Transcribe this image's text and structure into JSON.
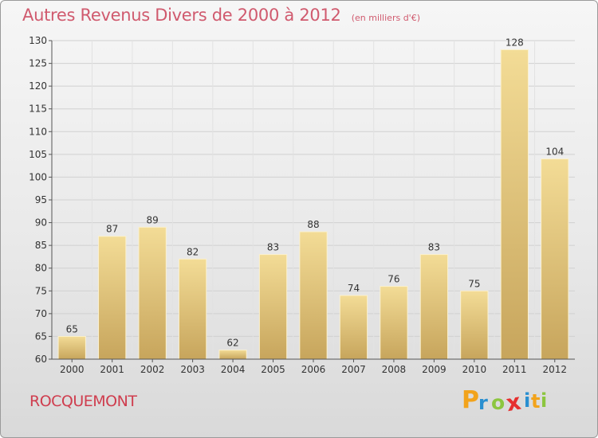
{
  "header": {
    "title": "Autres Revenus Divers de 2000 à 2012",
    "unit": "(en milliers d'€)"
  },
  "location": "ROCQUEMONT",
  "logo": {
    "text": "Proxiti",
    "letters": [
      {
        "ch": "P",
        "color": "#f2a31b"
      },
      {
        "ch": "r",
        "color": "#2a8fd0"
      },
      {
        "ch": "o",
        "color": "#8cc63f"
      },
      {
        "ch": "x",
        "color": "#e6302f"
      },
      {
        "ch": "i",
        "color": "#2a8fd0"
      },
      {
        "ch": "t",
        "color": "#f2a31b"
      },
      {
        "ch": "i",
        "color": "#8cc63f"
      }
    ]
  },
  "colors": {
    "title": "#d05a6e",
    "bar_light": "#f3dc96",
    "bar_dark": "#c7a55c",
    "grid": "#d0d0d0",
    "axis": "#555555"
  },
  "chart_data": {
    "type": "bar",
    "categories": [
      "2000",
      "2001",
      "2002",
      "2003",
      "2004",
      "2005",
      "2006",
      "2007",
      "2008",
      "2009",
      "2010",
      "2011",
      "2012"
    ],
    "values": [
      65,
      87,
      89,
      82,
      62,
      83,
      88,
      74,
      76,
      83,
      75,
      128,
      104
    ],
    "ylim": [
      60,
      130
    ],
    "yticks": [
      60,
      65,
      70,
      75,
      80,
      85,
      90,
      95,
      100,
      105,
      110,
      115,
      120,
      125,
      130
    ],
    "grid": true,
    "legend": "none"
  }
}
